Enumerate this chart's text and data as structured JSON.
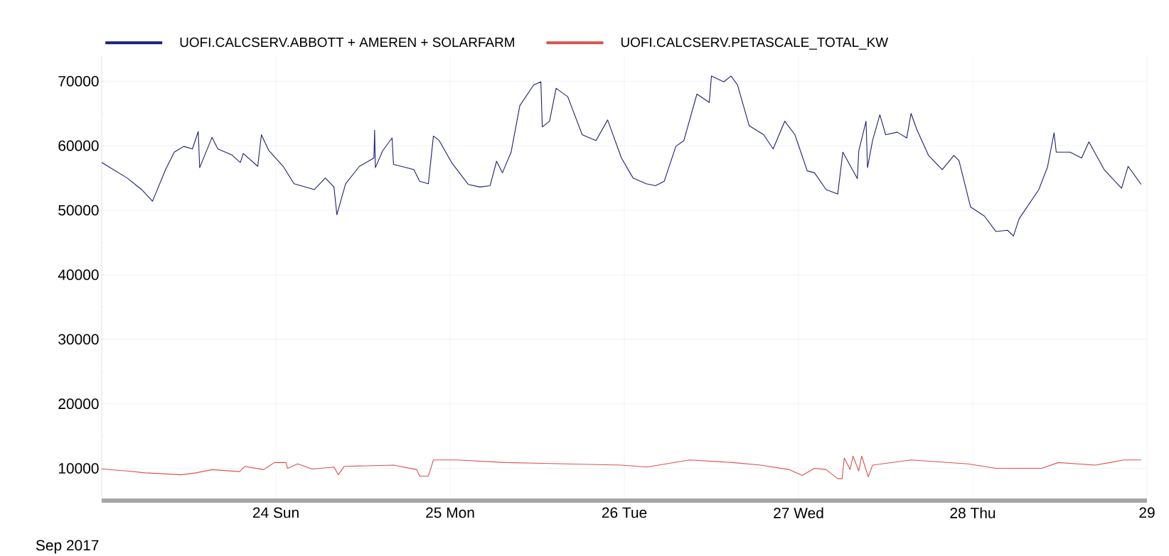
{
  "chart_data": {
    "type": "line",
    "xlabel": "Sep 2017",
    "series": [
      {
        "name": "UOFI.CALCSERV.ABBOTT + AMEREN + SOLARFARM",
        "color": "#1f1f7a",
        "x": [
          "2017-09-23T00:00",
          "2017-09-23T03:30",
          "2017-09-23T05:30",
          "2017-09-23T07:00",
          "2017-09-23T08:48",
          "2017-09-23T10:00",
          "2017-09-23T11:18",
          "2017-09-23T12:30",
          "2017-09-23T13:18",
          "2017-09-23T13:30",
          "2017-09-23T15:12",
          "2017-09-23T16:00",
          "2017-09-23T17:54",
          "2017-09-23T19:06",
          "2017-09-23T19:30",
          "2017-09-23T21:30",
          "2017-09-23T22:00",
          "2017-09-23T23:00",
          "2017-09-24T01:00",
          "2017-09-24T02:30",
          "2017-09-24T05:18",
          "2017-09-24T06:48",
          "2017-09-24T08:00",
          "2017-09-24T08:24",
          "2017-09-24T09:36",
          "2017-09-24T11:30",
          "2017-09-24T13:30",
          "2017-09-24T13:36",
          "2017-09-24T13:42",
          "2017-09-24T14:42",
          "2017-09-24T16:00",
          "2017-09-24T16:12",
          "2017-09-24T19:00",
          "2017-09-24T19:48",
          "2017-09-24T21:00",
          "2017-09-24T21:42",
          "2017-09-24T22:30",
          "2017-09-25T00:12",
          "2017-09-25T02:30",
          "2017-09-25T04:06",
          "2017-09-25T05:30",
          "2017-09-25T06:24",
          "2017-09-25T07:12",
          "2017-09-25T08:24",
          "2017-09-25T09:36",
          "2017-09-25T11:30",
          "2017-09-25T12:30",
          "2017-09-25T12:42",
          "2017-09-25T13:42",
          "2017-09-25T14:36",
          "2017-09-25T16:12",
          "2017-09-25T18:12",
          "2017-09-25T20:06",
          "2017-09-25T21:42",
          "2017-09-25T23:36",
          "2017-09-26T01:12",
          "2017-09-26T03:00",
          "2017-09-26T04:18",
          "2017-09-26T05:30",
          "2017-09-26T07:06",
          "2017-09-26T08:12",
          "2017-09-26T10:00",
          "2017-09-26T11:42",
          "2017-09-26T12:00",
          "2017-09-26T13:42",
          "2017-09-26T14:42",
          "2017-09-26T15:36",
          "2017-09-26T17:12",
          "2017-09-26T19:12",
          "2017-09-26T20:30",
          "2017-09-26T22:06",
          "2017-09-26T23:30",
          "2017-09-27T01:12",
          "2017-09-27T02:12",
          "2017-09-27T03:48",
          "2017-09-27T05:24",
          "2017-09-27T06:06",
          "2017-09-27T08:06",
          "2017-09-27T08:18",
          "2017-09-27T09:18",
          "2017-09-27T09:30",
          "2017-09-27T10:12",
          "2017-09-27T11:12",
          "2017-09-27T12:00",
          "2017-09-27T13:36",
          "2017-09-27T14:54",
          "2017-09-27T15:30",
          "2017-09-27T16:18",
          "2017-09-27T17:54",
          "2017-09-27T19:48",
          "2017-09-27T21:24",
          "2017-09-27T22:06",
          "2017-09-27T23:42",
          "2017-09-28T01:36",
          "2017-09-28T03:12",
          "2017-09-28T04:48",
          "2017-09-28T05:36",
          "2017-09-28T06:24",
          "2017-09-28T09:06",
          "2017-09-28T10:18",
          "2017-09-28T11:12",
          "2017-09-28T11:30",
          "2017-09-28T13:24",
          "2017-09-28T15:00",
          "2017-09-28T16:00",
          "2017-09-28T18:06",
          "2017-09-28T20:30",
          "2017-09-28T21:24",
          "2017-09-28T23:12"
        ],
        "values": [
          57400,
          55000,
          53200,
          51400,
          56300,
          59000,
          59900,
          59500,
          62200,
          56600,
          61300,
          59500,
          58600,
          57400,
          58800,
          56800,
          61700,
          59300,
          56800,
          54100,
          53200,
          55000,
          53600,
          49300,
          54100,
          56800,
          58100,
          62400,
          56600,
          59200,
          61200,
          57100,
          56300,
          54500,
          54100,
          61500,
          60800,
          57400,
          54000,
          53600,
          53800,
          57600,
          55800,
          59000,
          66200,
          69400,
          69900,
          62900,
          63800,
          68900,
          67600,
          61700,
          60800,
          64000,
          58100,
          55000,
          54100,
          53800,
          54500,
          59900,
          60800,
          68000,
          66700,
          70800,
          69900,
          70800,
          69400,
          63100,
          61700,
          59500,
          63800,
          61700,
          56100,
          55800,
          53200,
          52500,
          59000,
          54900,
          59200,
          63800,
          56600,
          60800,
          64800,
          61700,
          62100,
          61200,
          65000,
          62500,
          58500,
          56300,
          58500,
          57700,
          50500,
          49100,
          46700,
          46900,
          46000,
          48700,
          53200,
          56700,
          62000,
          59000,
          59000,
          58100,
          60600,
          56300,
          53400,
          56800,
          54000
        ]
      },
      {
        "name": "UOFI.CALCSERV.PETASCALE_TOTAL_KW",
        "color": "#d9534f",
        "x": [
          "2017-09-23T00:00",
          "2017-09-23T03:30",
          "2017-09-23T06:00",
          "2017-09-23T11:00",
          "2017-09-23T13:00",
          "2017-09-23T15:12",
          "2017-09-23T19:00",
          "2017-09-23T19:42",
          "2017-09-23T22:18",
          "2017-09-23T23:00",
          "2017-09-23T23:48",
          "2017-09-24T01:24",
          "2017-09-24T01:36",
          "2017-09-24T03:00",
          "2017-09-24T05:00",
          "2017-09-24T08:00",
          "2017-09-24T08:36",
          "2017-09-24T09:24",
          "2017-09-24T16:12",
          "2017-09-24T19:24",
          "2017-09-24T19:48",
          "2017-09-24T21:00",
          "2017-09-24T21:42",
          "2017-09-25T01:00",
          "2017-09-25T07:36",
          "2017-09-25T23:36",
          "2017-09-26T03:06",
          "2017-09-26T09:00",
          "2017-09-26T14:54",
          "2017-09-26T18:48",
          "2017-09-26T22:42",
          "2017-09-27T00:30",
          "2017-09-27T02:12",
          "2017-09-27T03:48",
          "2017-09-27T05:24",
          "2017-09-27T06:00",
          "2017-09-27T06:18",
          "2017-09-27T07:06",
          "2017-09-27T07:30",
          "2017-09-27T08:18",
          "2017-09-27T08:42",
          "2017-09-27T09:36",
          "2017-09-27T10:12",
          "2017-09-27T15:30",
          "2017-09-27T23:18",
          "2017-09-28T03:12",
          "2017-09-28T09:30",
          "2017-09-28T11:48",
          "2017-09-28T16:54",
          "2017-09-28T18:54",
          "2017-09-28T20:48",
          "2017-09-28T23:12"
        ],
        "values": [
          9900,
          9600,
          9300,
          9000,
          9300,
          9800,
          9500,
          10300,
          9800,
          10300,
          10900,
          10900,
          10000,
          10700,
          9900,
          10200,
          9000,
          10300,
          10500,
          9800,
          8800,
          8800,
          11300,
          11300,
          10900,
          10500,
          10200,
          11300,
          10900,
          10500,
          9800,
          8900,
          10000,
          9800,
          8400,
          8400,
          11600,
          9800,
          11900,
          9600,
          11900,
          8700,
          10500,
          11300,
          10700,
          10000,
          10000,
          10900,
          10500,
          10900,
          11300,
          11300
        ]
      }
    ],
    "xlim": [
      "2017-09-23T00:00",
      "2017-09-29T00:00"
    ],
    "xticks": [
      {
        "value": "2017-09-24",
        "label": "24 Sun"
      },
      {
        "value": "2017-09-25",
        "label": "25 Mon"
      },
      {
        "value": "2017-09-26",
        "label": "26 Tue"
      },
      {
        "value": "2017-09-27",
        "label": "27 Wed"
      },
      {
        "value": "2017-09-28",
        "label": "28 Thu"
      },
      {
        "value": "2017-09-29",
        "label": "29"
      }
    ],
    "ylim": [
      5000,
      74000
    ],
    "yticks": [
      10000,
      {
        "value": 15000,
        "label": null
      },
      20000,
      {
        "value": 25000,
        "label": null
      },
      30000,
      {
        "value": 35000,
        "label": null
      },
      40000,
      {
        "value": 45000,
        "label": null
      },
      50000,
      {
        "value": 55000,
        "label": null
      },
      60000,
      {
        "value": 65000,
        "label": null
      },
      70000
    ],
    "grid": true,
    "legend": "top"
  }
}
